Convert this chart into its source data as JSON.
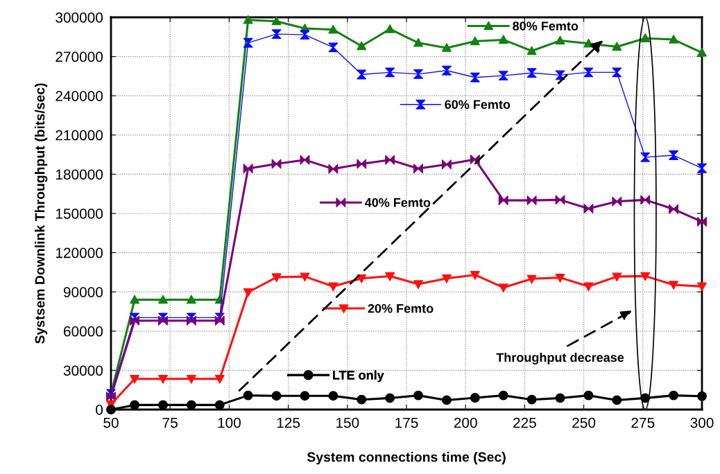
{
  "chart_data": {
    "type": "line",
    "xlabel": "System connections time (Sec)",
    "ylabel": "Systsem Downlink Throughput (bits/sec)",
    "x": [
      50,
      60,
      72,
      84,
      96,
      108,
      120,
      132,
      144,
      156,
      168,
      180,
      192,
      204,
      216,
      228,
      240,
      252,
      264,
      276,
      288,
      300
    ],
    "xlim": [
      50,
      300
    ],
    "xticks": [
      50,
      75,
      100,
      125,
      150,
      175,
      200,
      225,
      250,
      275,
      300
    ],
    "ylim": [
      0,
      300000
    ],
    "yticks": [
      0,
      30000,
      60000,
      90000,
      120000,
      150000,
      180000,
      210000,
      240000,
      270000,
      300000
    ],
    "grid": true,
    "legend": "center",
    "series": [
      {
        "name": "80% Femto",
        "color": "#128212",
        "marker": "triangle",
        "values": [
          12000,
          84000,
          84000,
          84000,
          84000,
          298000,
          297000,
          291500,
          290600,
          278000,
          291000,
          280500,
          276600,
          281700,
          282800,
          274300,
          282200,
          280000,
          277500,
          284000,
          283000,
          273000
        ]
      },
      {
        "name": "60% Femto",
        "color": "#0a0aff",
        "marker": "cross",
        "values": [
          12000,
          70300,
          70300,
          70300,
          70300,
          280500,
          287200,
          286700,
          277000,
          256300,
          257900,
          256600,
          259300,
          254000,
          255400,
          257500,
          255800,
          257900,
          257900,
          193000,
          194500,
          184600
        ]
      },
      {
        "name": "40% Femto",
        "color": "#7a007a",
        "marker": "cross",
        "values": [
          10000,
          68000,
          68000,
          68000,
          68000,
          184300,
          187900,
          191000,
          184000,
          187900,
          191000,
          184300,
          187500,
          191300,
          160000,
          160000,
          160400,
          153700,
          159100,
          160400,
          153300,
          143600
        ]
      },
      {
        "name": "20% Femto",
        "color": "#ff1010",
        "marker": "triangle",
        "values": [
          4000,
          23500,
          23500,
          23500,
          23500,
          89700,
          101200,
          101700,
          94200,
          100300,
          102000,
          95900,
          100300,
          103000,
          93300,
          100000,
          100900,
          94200,
          101700,
          102100,
          95400,
          94200
        ]
      },
      {
        "name": "LTE only",
        "color": "#000000",
        "marker": "circle",
        "values": [
          0,
          3500,
          3500,
          3500,
          3500,
          10800,
          10500,
          10500,
          10500,
          7600,
          8800,
          10800,
          7200,
          9000,
          10800,
          7600,
          8800,
          10800,
          7200,
          8800,
          10800,
          10200
        ]
      }
    ],
    "annotations": [
      "Throughput decrease"
    ]
  }
}
